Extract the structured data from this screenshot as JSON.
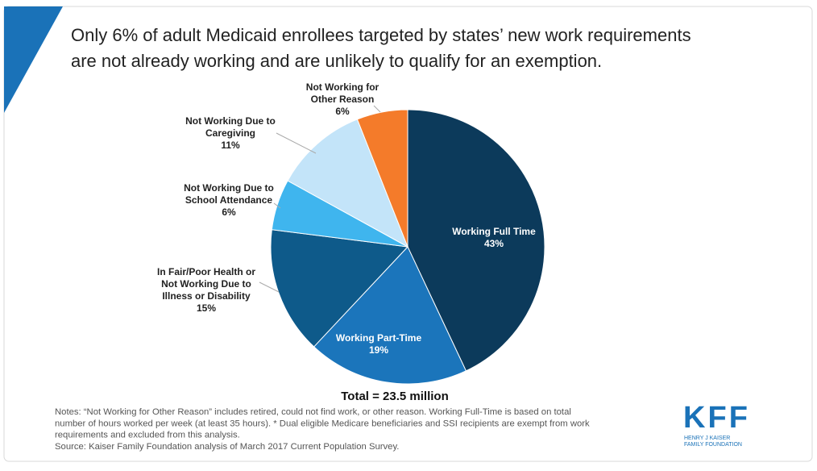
{
  "chart_data": {
    "type": "pie",
    "title": [
      "Only 6% of adult Medicaid enrollees targeted by states’ new work requirements",
      "are not already working and are unlikely to qualify for an exemption."
    ],
    "categories": [
      "Working Full Time",
      "Working Part-Time",
      "In Fair/Poor Health or Not Working Due to Illness or Disability",
      "Not Working Due to School Attendance",
      "Not Working Due to Caregiving",
      "Not Working for Other Reason"
    ],
    "values": [
      43,
      19,
      15,
      6,
      11,
      6
    ],
    "value_labels": [
      "43%",
      "19%",
      "15%",
      "6%",
      "11%",
      "6%"
    ],
    "colors": [
      "#0c3a5b",
      "#1b75bb",
      "#0e5a8a",
      "#3fb5ee",
      "#c3e4f9",
      "#f47b2a"
    ],
    "total": "Total = 23.5 million",
    "notes": [
      "Notes: “Not Working for Other Reason” includes retired, could not find work, or other reason. Working Full-Time  is based on total",
      "number of hours worked per week (at least 35 hours).  * Dual eligible Medicare beneficiaries and SSI recipients are exempt from work",
      "requirements and excluded from this analysis.",
      "Source: Kaiser Family Foundation analysis of March 2017 Current Population Survey."
    ],
    "logo": [
      "KFF",
      "HENRY J KAISER",
      "FAMILY FOUNDATION"
    ]
  }
}
